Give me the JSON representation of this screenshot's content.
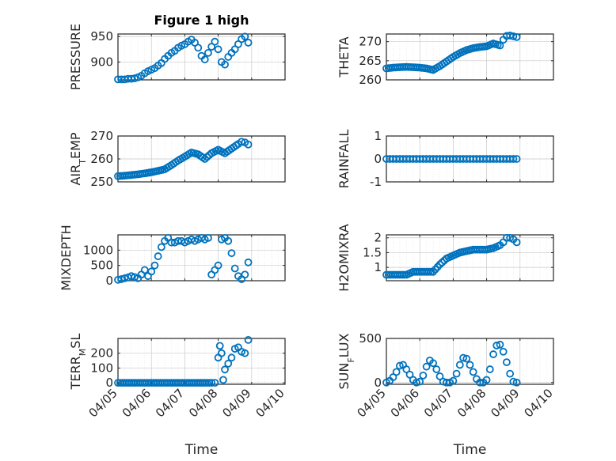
{
  "chart_data": [
    {
      "type": "scatter",
      "title": "Figure 1 high",
      "ylabel": "PRESSURE",
      "xlabel": "",
      "xlim": [
        0,
        5
      ],
      "ylim": [
        865,
        955
      ],
      "yticks": [
        900,
        950
      ],
      "ytick_labels": [
        "900",
        "950"
      ],
      "xticks": [
        0,
        1,
        2,
        3,
        4,
        5
      ],
      "xtick_labels": [],
      "grid": true,
      "marker_color": "#0072bd",
      "x": [
        0,
        0.1,
        0.2,
        0.3,
        0.4,
        0.5,
        0.6,
        0.7,
        0.8,
        0.9,
        1.0,
        1.1,
        1.2,
        1.3,
        1.4,
        1.5,
        1.6,
        1.7,
        1.8,
        1.9,
        2.0,
        2.1,
        2.2,
        2.3,
        2.4,
        2.5,
        2.6,
        2.7,
        2.8,
        2.9,
        3.0,
        3.1,
        3.2,
        3.3,
        3.4,
        3.5,
        3.6,
        3.7,
        3.8,
        3.9
      ],
      "values": [
        866,
        866,
        866,
        867,
        867,
        868,
        870,
        873,
        878,
        882,
        885,
        888,
        893,
        898,
        906,
        912,
        918,
        922,
        928,
        932,
        935,
        940,
        944,
        938,
        928,
        912,
        905,
        918,
        930,
        940,
        925,
        900,
        895,
        910,
        918,
        925,
        935,
        945,
        950,
        938
      ]
    },
    {
      "type": "scatter",
      "title": "",
      "ylabel": "THETA",
      "xlabel": "",
      "xlim": [
        0,
        5
      ],
      "ylim": [
        260,
        272
      ],
      "yticks": [
        260,
        265,
        270
      ],
      "ytick_labels": [
        "260",
        "265",
        "270"
      ],
      "xticks": [
        0,
        1,
        2,
        3,
        4,
        5
      ],
      "xtick_labels": [],
      "grid": true,
      "marker_color": "#0072bd",
      "x": [
        0,
        0.2,
        0.4,
        0.6,
        0.8,
        1.0,
        1.2,
        1.4,
        1.6,
        1.8,
        2.0,
        2.2,
        2.4,
        2.6,
        2.8,
        3.0,
        3.2,
        3.4,
        3.5,
        3.6,
        3.7,
        3.8,
        3.9
      ],
      "values": [
        263.0,
        263.2,
        263.3,
        263.4,
        263.3,
        263.2,
        263.0,
        262.6,
        263.6,
        264.8,
        266.0,
        267.0,
        267.8,
        268.3,
        268.6,
        268.8,
        269.5,
        269.0,
        270.5,
        271.5,
        271.6,
        271.4,
        271.2
      ]
    },
    {
      "type": "scatter",
      "title": "",
      "ylabel": "AIR_TEMP",
      "ylabel_main": "AIR",
      "ylabel_sub": "T",
      "ylabel_rest": "EMP",
      "xlabel": "",
      "xlim": [
        0,
        5
      ],
      "ylim": [
        250,
        270
      ],
      "yticks": [
        250,
        260,
        270
      ],
      "ytick_labels": [
        "250",
        "260",
        "270"
      ],
      "xticks": [
        0,
        1,
        2,
        3,
        4,
        5
      ],
      "xtick_labels": [],
      "grid": true,
      "marker_color": "#0072bd",
      "x": [
        0,
        0.2,
        0.4,
        0.6,
        0.8,
        1.0,
        1.2,
        1.4,
        1.6,
        1.8,
        2.0,
        2.2,
        2.4,
        2.6,
        2.8,
        3.0,
        3.2,
        3.4,
        3.6,
        3.7,
        3.8,
        3.9
      ],
      "values": [
        252.5,
        252.7,
        253.0,
        253.3,
        253.7,
        254.2,
        254.8,
        255.5,
        257.3,
        259.3,
        261.0,
        262.8,
        262.0,
        260.0,
        262.5,
        264.0,
        262.5,
        264.5,
        266.5,
        267.5,
        267.2,
        266.3
      ]
    },
    {
      "type": "scatter",
      "title": "",
      "ylabel": "RAINFALL",
      "xlabel": "",
      "xlim": [
        0,
        5
      ],
      "ylim": [
        -1,
        1
      ],
      "yticks": [
        -1,
        0,
        1
      ],
      "ytick_labels": [
        "-1",
        "0",
        "1"
      ],
      "xticks": [
        0,
        1,
        2,
        3,
        4,
        5
      ],
      "xtick_labels": [],
      "grid": true,
      "marker_color": "#0072bd",
      "x": [
        0,
        0.1,
        0.2,
        0.3,
        0.4,
        0.5,
        0.6,
        0.7,
        0.8,
        0.9,
        1.0,
        1.1,
        1.2,
        1.3,
        1.4,
        1.5,
        1.6,
        1.7,
        1.8,
        1.9,
        2.0,
        2.1,
        2.2,
        2.3,
        2.4,
        2.5,
        2.6,
        2.7,
        2.8,
        2.9,
        3.0,
        3.1,
        3.2,
        3.3,
        3.4,
        3.5,
        3.6,
        3.7,
        3.8,
        3.9
      ],
      "values": [
        0,
        0,
        0,
        0,
        0,
        0,
        0,
        0,
        0,
        0,
        0,
        0,
        0,
        0,
        0,
        0,
        0,
        0,
        0,
        0,
        0,
        0,
        0,
        0,
        0,
        0,
        0,
        0,
        0,
        0,
        0,
        0,
        0,
        0,
        0,
        0,
        0,
        0,
        0,
        0
      ]
    },
    {
      "type": "scatter",
      "title": "",
      "ylabel": "MIXDEPTH",
      "xlabel": "",
      "xlim": [
        0,
        5
      ],
      "ylim": [
        0,
        1500
      ],
      "yticks": [
        0,
        500,
        1000
      ],
      "ytick_labels": [
        "0",
        "500",
        "1000"
      ],
      "xticks": [
        0,
        1,
        2,
        3,
        4,
        5
      ],
      "xtick_labels": [],
      "grid": true,
      "marker_color": "#0072bd",
      "x": [
        0,
        0.1,
        0.2,
        0.3,
        0.4,
        0.5,
        0.6,
        0.7,
        0.8,
        0.9,
        1.0,
        1.1,
        1.2,
        1.3,
        1.4,
        1.5,
        1.6,
        1.7,
        1.8,
        1.9,
        2.0,
        2.1,
        2.2,
        2.3,
        2.4,
        2.5,
        2.6,
        2.7,
        2.8,
        2.9,
        3.0,
        3.1,
        3.2,
        3.3,
        3.4,
        3.5,
        3.6,
        3.7,
        3.8,
        3.9
      ],
      "values": [
        30,
        50,
        80,
        110,
        150,
        120,
        80,
        200,
        350,
        150,
        300,
        500,
        800,
        1100,
        1300,
        1400,
        1250,
        1250,
        1300,
        1300,
        1250,
        1300,
        1350,
        1300,
        1350,
        1400,
        1350,
        1400,
        200,
        350,
        500,
        1350,
        1400,
        1300,
        900,
        400,
        150,
        50,
        200,
        600
      ]
    },
    {
      "type": "scatter",
      "title": "",
      "ylabel": "H2OMIXRA",
      "xlabel": "",
      "xlim": [
        0,
        5
      ],
      "ylim": [
        0.55,
        2.1
      ],
      "yticks": [
        1,
        1.5,
        2
      ],
      "ytick_labels": [
        "1",
        "1.5",
        "2"
      ],
      "xticks": [
        0,
        1,
        2,
        3,
        4,
        5
      ],
      "xtick_labels": [],
      "grid": true,
      "marker_color": "#0072bd",
      "x": [
        0,
        0.2,
        0.4,
        0.6,
        0.8,
        1.0,
        1.2,
        1.4,
        1.6,
        1.8,
        2.0,
        2.2,
        2.4,
        2.6,
        2.8,
        3.0,
        3.2,
        3.4,
        3.5,
        3.6,
        3.7,
        3.8,
        3.9
      ],
      "values": [
        0.75,
        0.75,
        0.75,
        0.75,
        0.85,
        0.85,
        0.85,
        0.85,
        1.1,
        1.3,
        1.4,
        1.5,
        1.55,
        1.6,
        1.6,
        1.6,
        1.65,
        1.75,
        1.85,
        2.0,
        2.0,
        1.95,
        1.85
      ]
    },
    {
      "type": "scatter",
      "title": "",
      "ylabel": "TERR_MSL",
      "ylabel_main": "TERR",
      "ylabel_sub": "M",
      "ylabel_rest": "SL",
      "xlabel": "Time",
      "xlim": [
        0,
        5
      ],
      "ylim": [
        -10,
        300
      ],
      "yticks": [
        0,
        100,
        200
      ],
      "ytick_labels": [
        "0",
        "100",
        "200"
      ],
      "xticks": [
        0,
        1,
        2,
        3,
        4,
        5
      ],
      "xtick_labels": [
        "04/05",
        "04/06",
        "04/07",
        "04/08",
        "04/09",
        "04/10"
      ],
      "grid": true,
      "marker_color": "#0072bd",
      "x": [
        0,
        0.2,
        0.4,
        0.6,
        0.8,
        1.0,
        1.2,
        1.4,
        1.6,
        1.8,
        2.0,
        2.2,
        2.4,
        2.6,
        2.8,
        2.9,
        3.0,
        3.05,
        3.1,
        3.15,
        3.2,
        3.3,
        3.4,
        3.5,
        3.6,
        3.7,
        3.8,
        3.9
      ],
      "values": [
        0,
        0,
        0,
        0,
        0,
        0,
        0,
        0,
        0,
        0,
        0,
        0,
        0,
        0,
        0,
        0,
        170,
        250,
        200,
        20,
        90,
        130,
        170,
        230,
        240,
        210,
        200,
        290
      ]
    },
    {
      "type": "scatter",
      "title": "",
      "ylabel": "SUN_FLUX",
      "ylabel_main": "SUN",
      "ylabel_sub": "F",
      "ylabel_rest": "LUX",
      "xlabel": "Time",
      "xlim": [
        0,
        5
      ],
      "ylim": [
        -20,
        500
      ],
      "yticks": [
        0,
        500
      ],
      "ytick_labels": [
        "0",
        "500"
      ],
      "xticks": [
        0,
        1,
        2,
        3,
        4,
        5
      ],
      "xtick_labels": [
        "04/05",
        "04/06",
        "04/07",
        "04/08",
        "04/09",
        "04/10"
      ],
      "grid": true,
      "marker_color": "#0072bd",
      "x": [
        0,
        0.1,
        0.2,
        0.3,
        0.4,
        0.5,
        0.6,
        0.7,
        0.8,
        0.9,
        1.0,
        1.1,
        1.2,
        1.3,
        1.4,
        1.5,
        1.6,
        1.7,
        1.8,
        1.9,
        2.0,
        2.1,
        2.2,
        2.3,
        2.4,
        2.5,
        2.6,
        2.7,
        2.8,
        2.9,
        3.0,
        3.1,
        3.2,
        3.3,
        3.4,
        3.5,
        3.6,
        3.7,
        3.8,
        3.9
      ],
      "values": [
        0,
        20,
        60,
        120,
        190,
        200,
        150,
        90,
        30,
        0,
        10,
        80,
        180,
        250,
        220,
        150,
        70,
        10,
        0,
        0,
        20,
        100,
        200,
        280,
        270,
        200,
        120,
        40,
        0,
        0,
        30,
        150,
        320,
        420,
        430,
        350,
        230,
        100,
        10,
        0
      ]
    }
  ]
}
